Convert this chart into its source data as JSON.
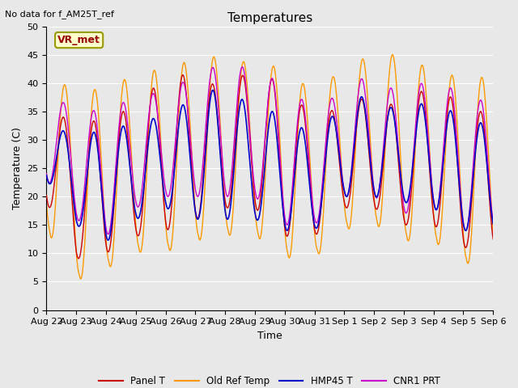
{
  "title": "Temperatures",
  "no_data_text": "No data for f_AM25T_ref",
  "vr_met_label": "VR_met",
  "ylabel": "Temperature (C)",
  "xlabel": "Time",
  "ylim": [
    0,
    50
  ],
  "yticks": [
    0,
    5,
    10,
    15,
    20,
    25,
    30,
    35,
    40,
    45,
    50
  ],
  "x_tick_labels": [
    "Aug 22",
    "Aug 23",
    "Aug 24",
    "Aug 25",
    "Aug 26",
    "Aug 27",
    "Aug 28",
    "Aug 29",
    "Aug 30",
    "Aug 31",
    "Sep 1",
    "Sep 2",
    "Sep 3",
    "Sep 4",
    "Sep 5",
    "Sep 6"
  ],
  "series": [
    {
      "label": "Panel T",
      "color": "#cc0000"
    },
    {
      "label": "Old Ref Temp",
      "color": "#ff9900"
    },
    {
      "label": "HMP45 T",
      "color": "#0000cc"
    },
    {
      "label": "CNR1 PRT",
      "color": "#cc00cc"
    }
  ],
  "plot_bg_color": "#e8e8e8",
  "fig_bg_color": "#e8e8e8",
  "grid_color": "#ffffff",
  "n_days": 15,
  "day_max_panel": [
    38,
    31,
    35,
    35,
    42,
    41,
    39,
    43,
    39,
    34,
    36,
    38,
    35,
    41,
    35
  ],
  "day_min_panel": [
    19,
    9,
    10,
    13,
    14,
    16,
    18,
    18,
    13,
    13,
    18,
    18,
    15,
    15,
    11
  ],
  "day_max_orange": [
    44,
    37,
    40,
    41,
    43,
    44,
    45,
    43,
    43,
    38,
    43,
    45,
    45,
    42,
    41
  ],
  "day_min_orange": [
    15,
    6,
    8,
    11,
    11,
    13,
    14,
    14,
    10,
    10,
    15,
    16,
    13,
    13,
    9
  ],
  "day_max_blue": [
    35,
    29,
    33,
    32,
    35,
    37,
    40,
    35,
    35,
    30,
    37,
    38,
    34,
    38,
    33
  ],
  "day_min_blue": [
    23,
    15,
    12,
    16,
    18,
    16,
    16,
    16,
    14,
    14,
    20,
    20,
    19,
    18,
    14
  ],
  "day_max_purple": [
    40,
    34,
    36,
    37,
    39,
    41,
    44,
    42,
    40,
    35,
    39,
    42,
    37,
    42,
    37
  ],
  "day_min_purple": [
    23,
    16,
    13,
    18,
    20,
    20,
    20,
    20,
    15,
    15,
    20,
    20,
    17,
    18,
    14
  ]
}
